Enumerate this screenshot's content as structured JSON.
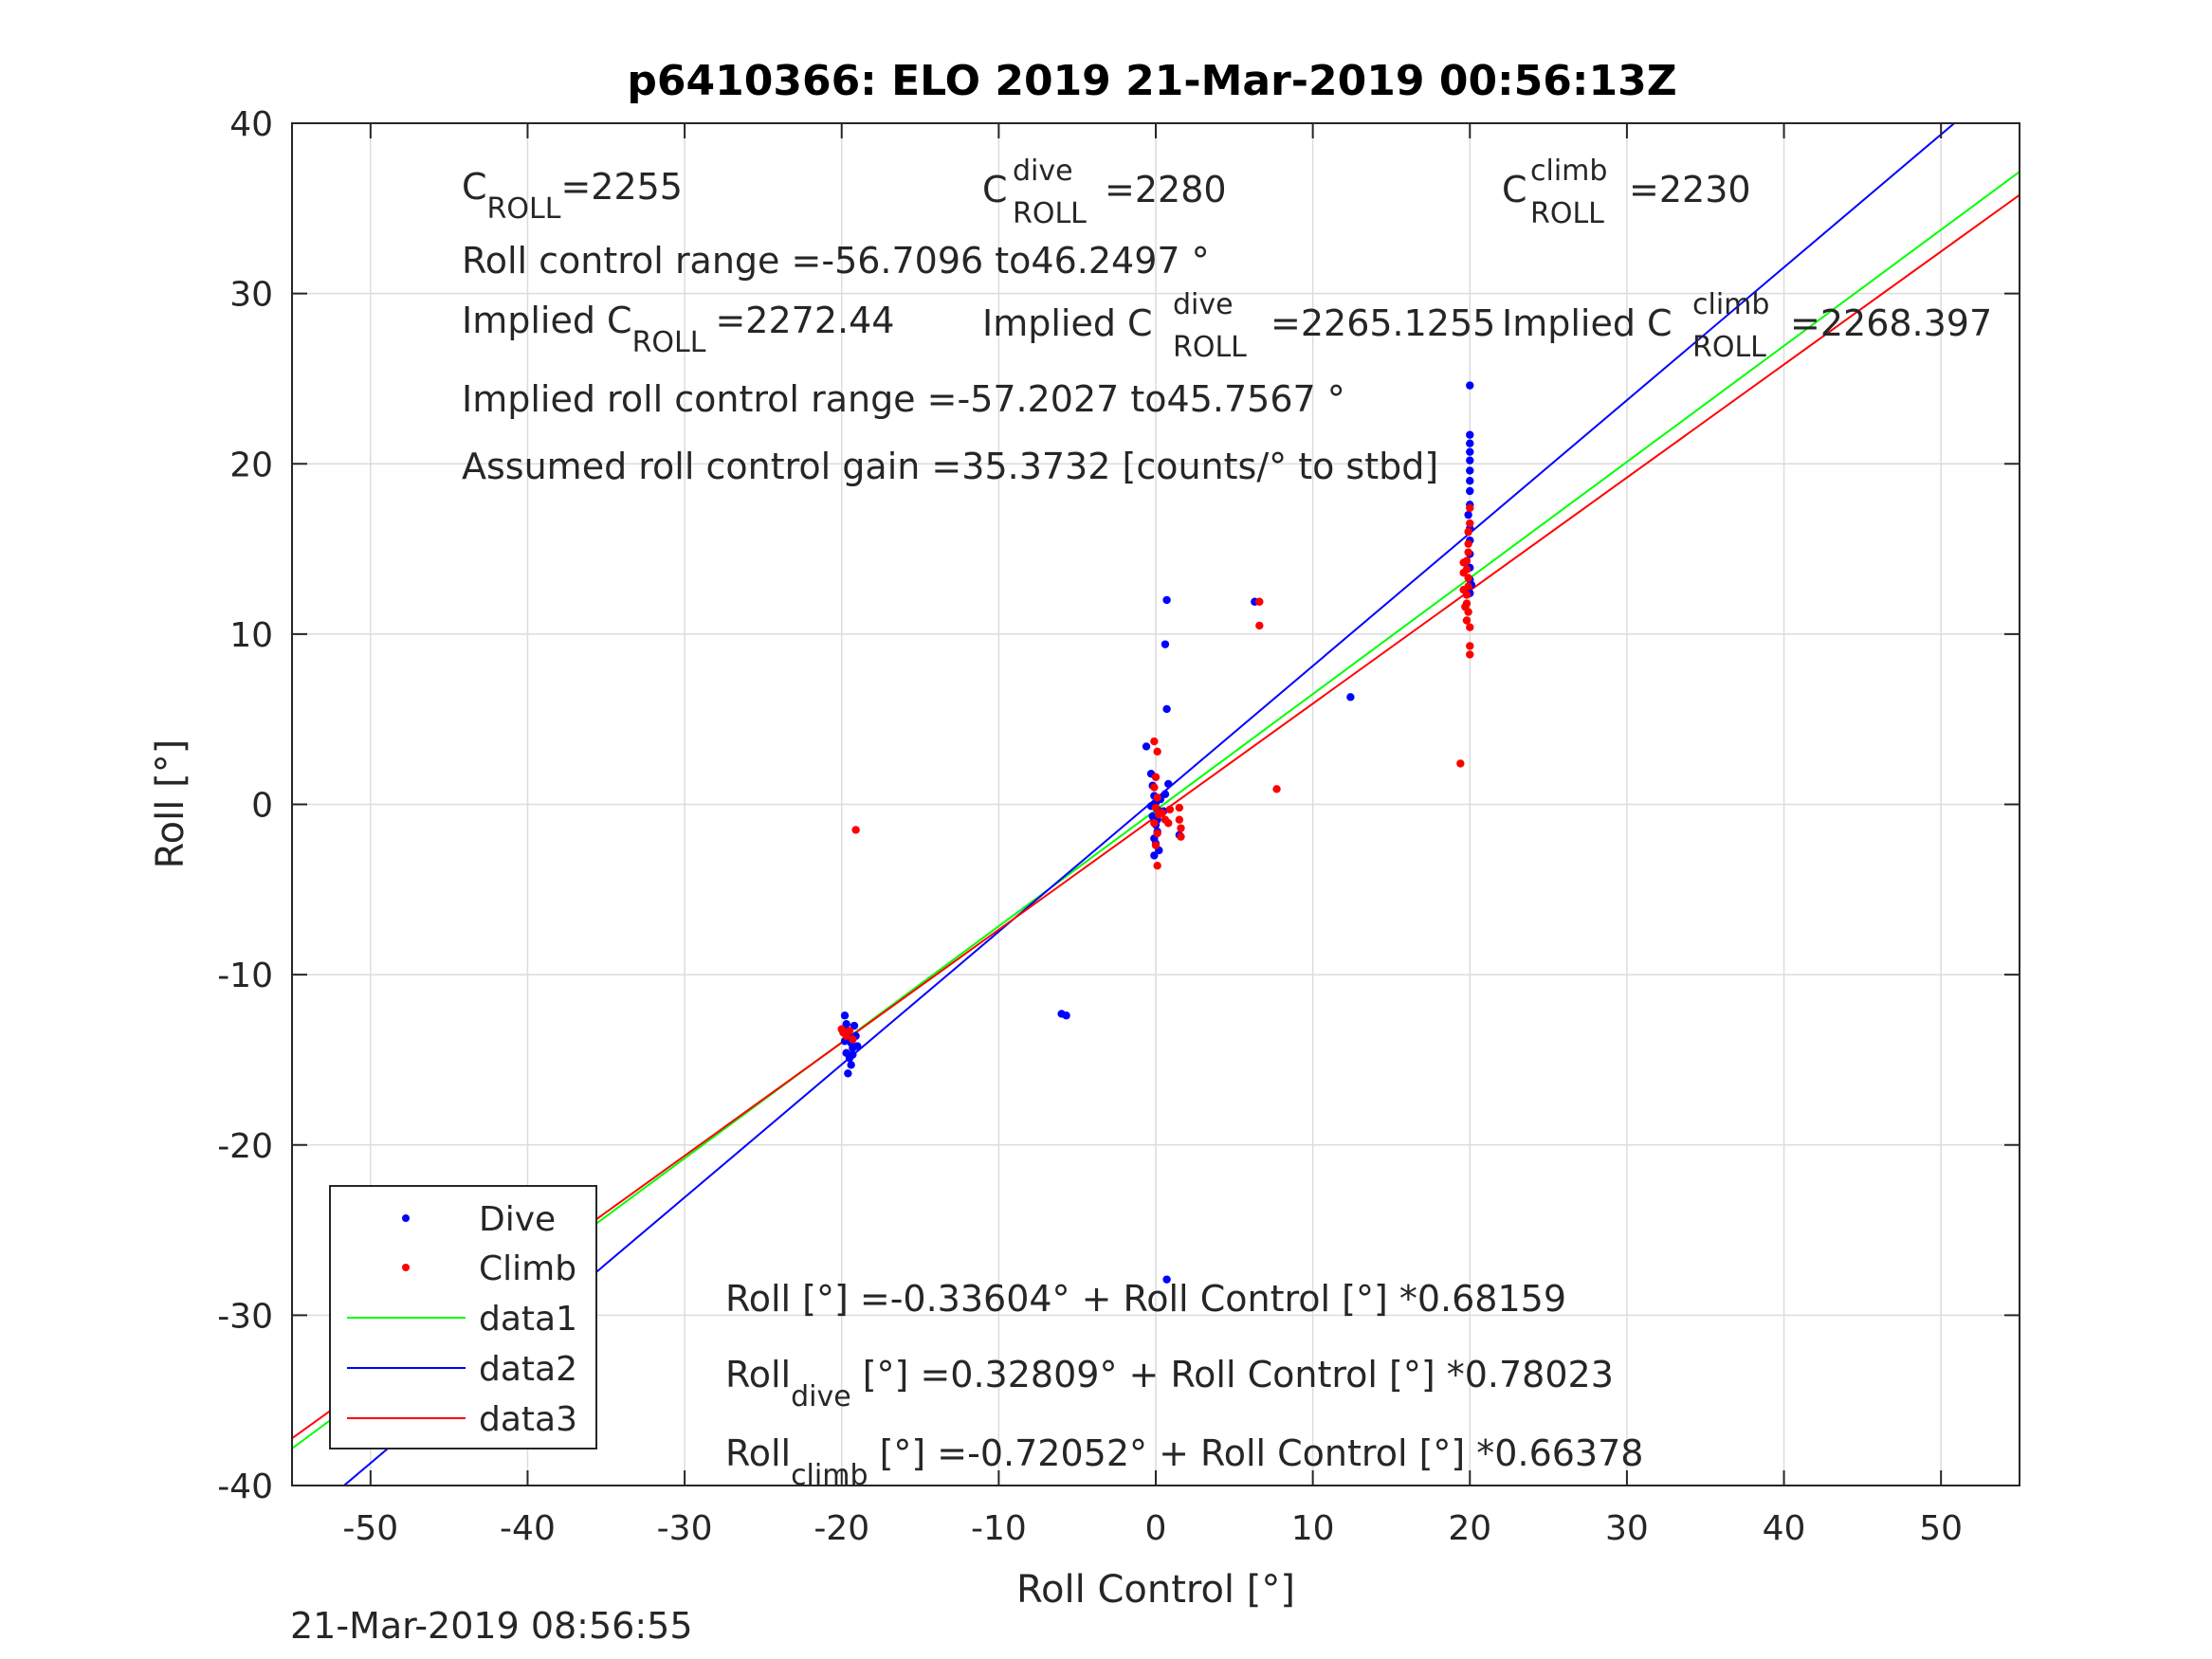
{
  "chart_data": {
    "type": "scatter",
    "title": "p6410366: ELO 2019 21-Mar-2019 00:56:13Z",
    "xlabel": "Roll Control [°]",
    "ylabel": "Roll [°]",
    "xlim": [
      -55,
      55
    ],
    "ylim": [
      -40,
      40
    ],
    "grid": true,
    "x_ticks": [
      -50,
      -40,
      -30,
      -20,
      -10,
      0,
      10,
      20,
      30,
      40,
      50
    ],
    "y_ticks": [
      -40,
      -30,
      -20,
      -10,
      0,
      10,
      20,
      30,
      40
    ],
    "x_tick_labels": [
      "-50",
      "-40",
      "-30",
      "-20",
      "-10",
      "0",
      "10",
      "20",
      "30",
      "40",
      "50"
    ],
    "y_tick_labels": [
      "-40",
      "-30",
      "-20",
      "-10",
      "0",
      "10",
      "20",
      "30",
      "40"
    ],
    "legend_position": "bottom-left",
    "series": [
      {
        "name": "Dive",
        "kind": "points",
        "color": "#0000ff",
        "points": [
          [
            -19.8,
            -12.4
          ],
          [
            -19.7,
            -12.9
          ],
          [
            -19.6,
            -13.3
          ],
          [
            -19.5,
            -13.7
          ],
          [
            -19.4,
            -14.0
          ],
          [
            -19.3,
            -14.3
          ],
          [
            -19.7,
            -14.6
          ],
          [
            -19.5,
            -14.9
          ],
          [
            -19.4,
            -15.3
          ],
          [
            -19.6,
            -15.8
          ],
          [
            -19.2,
            -13.0
          ],
          [
            -19.1,
            -13.6
          ],
          [
            -19.0,
            -14.2
          ],
          [
            -19.3,
            -14.7
          ],
          [
            -19.8,
            -13.9
          ],
          [
            -6.0,
            -12.3
          ],
          [
            -5.7,
            -12.4
          ],
          [
            -0.6,
            3.4
          ],
          [
            -0.3,
            1.8
          ],
          [
            -0.2,
            1.1
          ],
          [
            -0.1,
            0.5
          ],
          [
            0.0,
            0.1
          ],
          [
            0.1,
            -0.3
          ],
          [
            -0.2,
            -0.7
          ],
          [
            0.0,
            -1.2
          ],
          [
            0.1,
            -1.6
          ],
          [
            -0.1,
            -2.0
          ],
          [
            0.0,
            -2.3
          ],
          [
            0.2,
            -2.7
          ],
          [
            -0.1,
            -3.0
          ],
          [
            0.1,
            -0.9
          ],
          [
            0.3,
            0.3
          ],
          [
            -0.3,
            -0.1
          ],
          [
            0.7,
            12.0
          ],
          [
            0.6,
            9.4
          ],
          [
            0.7,
            5.6
          ],
          [
            0.6,
            0.6
          ],
          [
            0.8,
            1.2
          ],
          [
            0.5,
            -0.4
          ],
          [
            0.7,
            -27.9
          ],
          [
            1.5,
            -1.8
          ],
          [
            6.3,
            11.9
          ],
          [
            12.4,
            6.3
          ],
          [
            20.0,
            24.6
          ],
          [
            20.0,
            21.7
          ],
          [
            20.0,
            21.2
          ],
          [
            20.0,
            20.7
          ],
          [
            20.0,
            20.2
          ],
          [
            20.0,
            19.6
          ],
          [
            20.0,
            19.0
          ],
          [
            20.0,
            18.4
          ],
          [
            20.0,
            17.6
          ],
          [
            19.9,
            17.0
          ],
          [
            20.0,
            16.2
          ],
          [
            20.0,
            15.5
          ],
          [
            20.0,
            14.7
          ],
          [
            20.0,
            13.9
          ],
          [
            20.0,
            13.2
          ],
          [
            20.0,
            12.4
          ],
          [
            20.1,
            12.9
          ]
        ]
      },
      {
        "name": "Climb",
        "kind": "points",
        "color": "#ff0000",
        "points": [
          [
            -19.1,
            -1.5
          ],
          [
            -20.0,
            -13.2
          ],
          [
            -19.9,
            -13.4
          ],
          [
            -19.7,
            -13.6
          ],
          [
            -19.5,
            -13.3
          ],
          [
            -19.3,
            -13.8
          ],
          [
            -0.1,
            3.7
          ],
          [
            0.1,
            3.1
          ],
          [
            0.0,
            1.6
          ],
          [
            -0.1,
            1.0
          ],
          [
            0.1,
            0.4
          ],
          [
            0.0,
            -0.2
          ],
          [
            0.2,
            -0.6
          ],
          [
            -0.1,
            -1.1
          ],
          [
            0.1,
            -1.7
          ],
          [
            0.0,
            -2.4
          ],
          [
            0.1,
            -3.6
          ],
          [
            0.4,
            -0.5
          ],
          [
            0.6,
            -0.9
          ],
          [
            0.8,
            -1.1
          ],
          [
            0.9,
            -0.3
          ],
          [
            1.5,
            -0.2
          ],
          [
            1.5,
            -0.9
          ],
          [
            1.6,
            -1.4
          ],
          [
            1.6,
            -1.9
          ],
          [
            6.6,
            11.9
          ],
          [
            6.6,
            10.5
          ],
          [
            7.7,
            0.9
          ],
          [
            19.4,
            2.4
          ],
          [
            20.0,
            17.4
          ],
          [
            20.0,
            16.5
          ],
          [
            19.9,
            16.0
          ],
          [
            19.9,
            15.3
          ],
          [
            19.9,
            14.8
          ],
          [
            19.8,
            14.3
          ],
          [
            19.8,
            13.8
          ],
          [
            19.9,
            13.3
          ],
          [
            19.9,
            12.8
          ],
          [
            19.8,
            12.3
          ],
          [
            19.8,
            11.8
          ],
          [
            19.9,
            11.3
          ],
          [
            19.8,
            10.8
          ],
          [
            20.0,
            10.4
          ],
          [
            20.0,
            9.3
          ],
          [
            20.0,
            8.8
          ],
          [
            19.6,
            13.6
          ],
          [
            19.6,
            12.6
          ],
          [
            19.7,
            11.6
          ],
          [
            19.6,
            14.2
          ]
        ]
      },
      {
        "name": "data1",
        "kind": "line",
        "color": "#00ff00",
        "intercept": -0.33604,
        "slope": 0.68159
      },
      {
        "name": "data2",
        "kind": "line",
        "color": "#0000ff",
        "intercept": 0.32809,
        "slope": 0.78023
      },
      {
        "name": "data3",
        "kind": "line",
        "color": "#ff0000",
        "intercept": -0.72052,
        "slope": 0.66378
      }
    ],
    "annotations": {
      "c_roll": {
        "base": "C",
        "sub": "ROLL",
        "value": "=2255"
      },
      "c_roll_dive": {
        "base": "C",
        "sup": "dive",
        "sub": "ROLL",
        "value": "=2280"
      },
      "c_roll_climb": {
        "base": "C",
        "sup": "climb",
        "sub": "ROLL",
        "value": "=2230"
      },
      "roll_control_range": "Roll control range =-56.7096 to46.2497 °",
      "implied_c_roll": {
        "base": "Implied C",
        "sub": "ROLL",
        "value": "=2272.44"
      },
      "implied_c_roll_dive": {
        "base": "Implied C",
        "sup": "dive",
        "sub": "ROLL",
        "value": "=2265.1255"
      },
      "implied_c_roll_climb": {
        "base": "Implied C",
        "sup": "climb",
        "sub": "ROLL",
        "value": "=2268.397"
      },
      "implied_roll_control_range": "Implied roll control range =-57.2027 to45.7567 °",
      "gain": "Assumed roll control gain =35.3732 [counts/° to stbd]",
      "fit_all": "Roll [°] =-0.33604° + Roll Control [°] *0.68159",
      "fit_dive": {
        "base": "Roll",
        "sub": "dive",
        "rest": " [°] =0.32809° + Roll Control [°] *0.78023"
      },
      "fit_climb": {
        "base": "Roll",
        "sub": "climb",
        "rest": " [°] =-0.72052° + Roll Control [°] *0.66378"
      }
    },
    "timestamp": "21-Mar-2019 08:56:55"
  }
}
